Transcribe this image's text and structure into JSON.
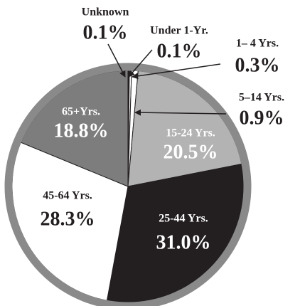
{
  "chart_data": {
    "type": "pie",
    "categories": [
      "Unknown",
      "Under 1-Yr.",
      "1– 4 Yrs.",
      "5–14 Yrs.",
      "15-24 Yrs.",
      "25-44 Yrs.",
      "45-64 Yrs.",
      "65+Yrs."
    ],
    "values": [
      0.1,
      0.1,
      0.3,
      0.9,
      20.5,
      31.0,
      28.3,
      18.8
    ],
    "value_labels": [
      "0.1%",
      "0.1%",
      "0.3%",
      "0.9%",
      "20.5%",
      "31.0%",
      "28.3%",
      "18.8%"
    ],
    "colors": [
      "#ffffff",
      "#ffffff",
      "#ffffff",
      "#ffffff",
      "#b3b3b3",
      "#231f20",
      "#ffffff",
      "#7d7d7d"
    ]
  }
}
